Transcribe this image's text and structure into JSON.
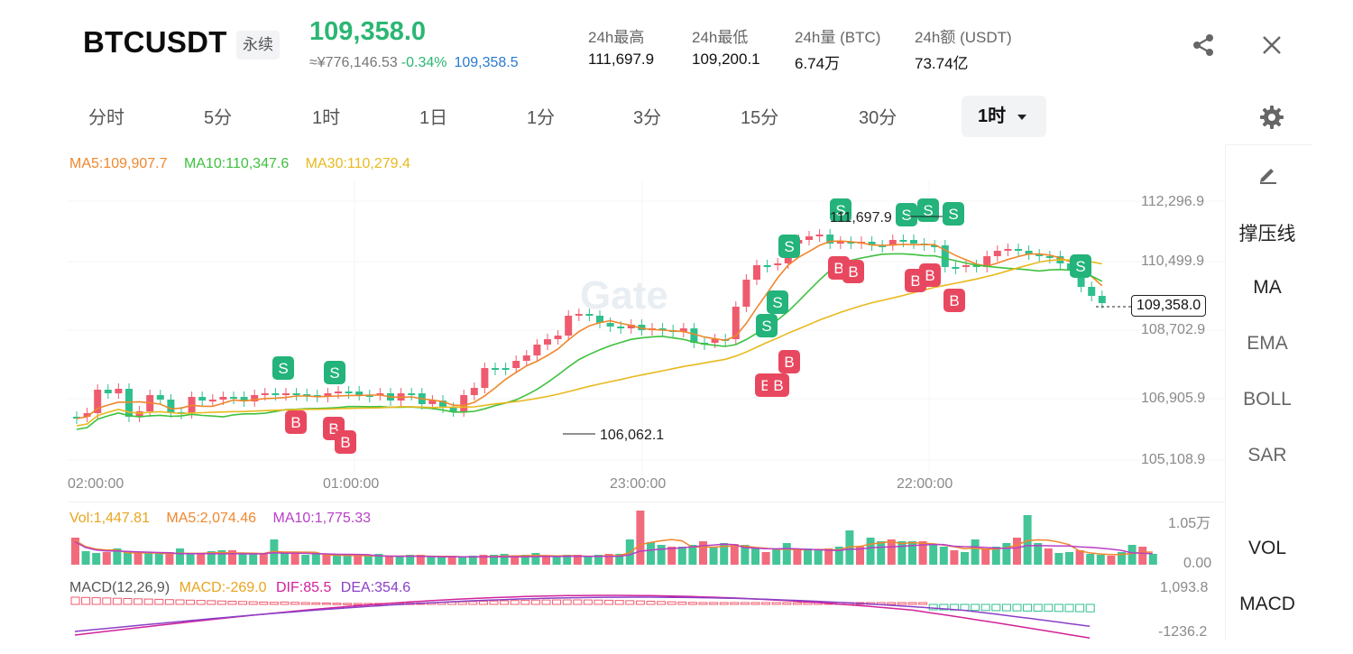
{
  "header": {
    "symbol": "BTCUSDT",
    "contract_type": "永续",
    "last_price": "109,358.0",
    "cny_price": "≈¥776,146.53",
    "change_pct": "-0.34%",
    "mark_price": "109,358.5",
    "stats": [
      {
        "label": "24h最高",
        "value": "111,697.9"
      },
      {
        "label": "24h最低",
        "value": "109,200.1"
      },
      {
        "label": "24h量 (BTC)",
        "value": "6.74万"
      },
      {
        "label": "24h额 (USDT)",
        "value": "73.74亿"
      }
    ]
  },
  "toolbar": {
    "intervals": [
      "分时",
      "5分",
      "1时",
      "1日",
      "1分",
      "3分",
      "15分",
      "30分"
    ],
    "active_interval": "1时",
    "share_icon": "share-icon",
    "close_icon": "close-icon",
    "settings_icon": "gear-icon"
  },
  "side_tools": {
    "pen_icon": "pencil-icon",
    "items": [
      "撑压线",
      "MA",
      "EMA",
      "BOLL",
      "SAR"
    ],
    "sub_items": [
      "VOL",
      "MACD"
    ]
  },
  "main_chart": {
    "legend": [
      {
        "text": "MA5:109,907.7",
        "color": "#f0872d"
      },
      {
        "text": "MA10:110,347.6",
        "color": "#3ec13e"
      },
      {
        "text": "MA30:110,279.4",
        "color": "#e8b91e"
      }
    ],
    "y_ticks": [
      "112,296.9",
      "110,499.9",
      "108,702.9",
      "106,905.9",
      "105,108.9"
    ],
    "x_ticks": [
      "02:00:00",
      "01:00:00",
      "23:00:00",
      "22:00:00"
    ],
    "current_price_label": "109,358.0",
    "high_marker": "111,697.9",
    "low_marker": "106,062.1",
    "watermark": "Gate",
    "sell_badge": "S",
    "buy_badge": "B",
    "up_color": "#ef5b6e",
    "down_color": "#2fbf8d"
  },
  "volume_chart": {
    "legend": [
      {
        "text": "Vol:1,447.81",
        "color": "#e8a51e"
      },
      {
        "text": "MA5:2,074.46",
        "color": "#f0872d"
      },
      {
        "text": "MA10:1,775.33",
        "color": "#b83fc7"
      }
    ],
    "y_ticks": [
      "1.05万",
      "0.00"
    ]
  },
  "macd_chart": {
    "legend": [
      {
        "text": "MACD(12,26,9)",
        "color": "#555555"
      },
      {
        "text": "MACD:-269.0",
        "color": "#e8a51e"
      },
      {
        "text": "DIF:85.5",
        "color": "#d1229a"
      },
      {
        "text": "DEA:354.6",
        "color": "#8a3fc7"
      }
    ],
    "y_ticks": [
      "1,093.8",
      "-1236.2"
    ]
  }
}
